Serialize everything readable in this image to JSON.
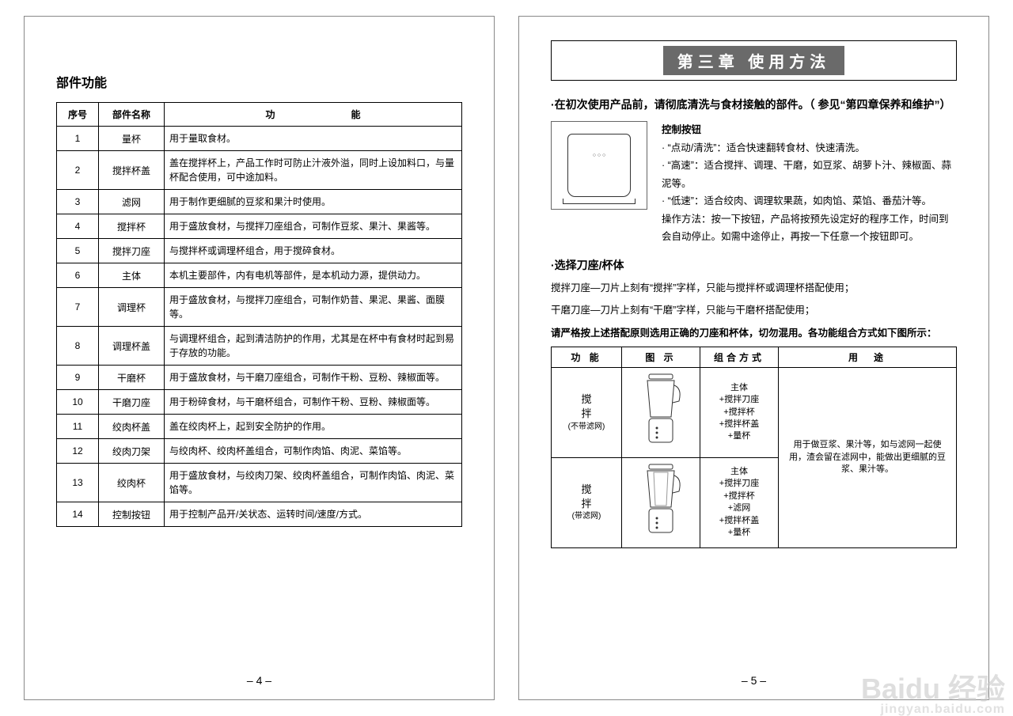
{
  "left": {
    "heading": "部件功能",
    "table": {
      "headers": {
        "num": "序号",
        "name": "部件名称",
        "func": "功　　能"
      },
      "rows": [
        {
          "num": "1",
          "name": "量杯",
          "func": "用于量取食材。"
        },
        {
          "num": "2",
          "name": "搅拌杯盖",
          "func": "盖在搅拌杯上，产品工作时可防止汁液外溢，同时上设加料口，与量杯配合使用，可中途加料。"
        },
        {
          "num": "3",
          "name": "滤网",
          "func": "用于制作更细腻的豆浆和果汁时使用。"
        },
        {
          "num": "4",
          "name": "搅拌杯",
          "func": "用于盛放食材，与搅拌刀座组合，可制作豆浆、果汁、果酱等。"
        },
        {
          "num": "5",
          "name": "搅拌刀座",
          "func": "与搅拌杯或调理杯组合，用于搅碎食材。"
        },
        {
          "num": "6",
          "name": "主体",
          "func": "本机主要部件，内有电机等部件，是本机动力源，提供动力。"
        },
        {
          "num": "7",
          "name": "调理杯",
          "func": "用于盛放食材，与搅拌刀座组合，可制作奶昔、果泥、果酱、面膜等。"
        },
        {
          "num": "8",
          "name": "调理杯盖",
          "func": "与调理杯组合，起到清洁防护的作用，尤其是在杯中有食材时起到易于存放的功能。"
        },
        {
          "num": "9",
          "name": "干磨杯",
          "func": "用于盛放食材，与干磨刀座组合，可制作干粉、豆粉、辣椒面等。"
        },
        {
          "num": "10",
          "name": "干磨刀座",
          "func": "用于粉碎食材，与干磨杯组合，可制作干粉、豆粉、辣椒面等。"
        },
        {
          "num": "11",
          "name": "绞肉杯盖",
          "func": "盖在绞肉杯上，起到安全防护的作用。"
        },
        {
          "num": "12",
          "name": "绞肉刀架",
          "func": "与绞肉杯、绞肉杯盖组合，可制作肉馅、肉泥、菜馅等。"
        },
        {
          "num": "13",
          "name": "绞肉杯",
          "func": "用于盛放食材，与绞肉刀架、绞肉杯盖组合，可制作肉馅、肉泥、菜馅等。"
        },
        {
          "num": "14",
          "name": "控制按钮",
          "func": "用于控制产品开/关状态、运转时间/速度/方式。"
        }
      ]
    },
    "page_num": "– 4 –"
  },
  "right": {
    "chapter_title": "第三章 使用方法",
    "intro": "·在初次使用产品前，请彻底清洗与食材接触的部件。（ 参见“第四章保养和维护”）",
    "control": {
      "heading": "控制按钮",
      "lines": [
        "· “点动/清洗”：适合快速翻转食材、快速清洗。",
        "· “高速”：适合搅拌、调理、干磨，如豆浆、胡萝卜汁、辣椒面、蒜泥等。",
        "· “低速”：适合绞肉、调理软果蔬，如肉馅、菜馅、番茄汁等。",
        "操作方法：按一下按钮，产品将按预先设定好的程序工作，时间到会自动停止。如需中途停止，再按一下任意一个按钮即可。"
      ],
      "device_btns": "○\n○\n○"
    },
    "select": {
      "heading": "·选择刀座/杯体",
      "para1": "搅拌刀座—刀片上刻有“搅拌”字样，只能与搅拌杯或调理杯搭配使用；",
      "para2": "干磨刀座—刀片上刻有“干磨”字样，只能与干磨杯搭配使用；",
      "para3": "请严格按上述搭配原则选用正确的刀座和杯体，切勿混用。各功能组合方式如下图所示："
    },
    "combo_table": {
      "headers": {
        "func": "功 能",
        "illus": "图 示",
        "combo": "组合方式",
        "use": "用　途"
      },
      "rows": [
        {
          "func": "搅\n拌",
          "func_note": "(不带滤网)",
          "combo": "主体\n+搅拌刀座\n+搅拌杯\n+搅拌杯盖\n+量杯",
          "use_rowspan": true
        },
        {
          "func": "搅\n拌",
          "func_note": "(带滤网)",
          "combo": "主体\n+搅拌刀座\n+搅拌杯\n+滤网\n+搅拌杯盖\n+量杯"
        }
      ],
      "use": "用于做豆浆、果汁等，如与滤网一起使用，渣会留在滤网中，能做出更细腻的豆浆、果汁等。"
    },
    "page_num": "– 5 –"
  },
  "watermark": {
    "main": "Baidu 经验",
    "sub": "jingyan.baidu.com"
  },
  "colors": {
    "page_border": "#888888",
    "table_border": "#000000",
    "chapter_bg": "#6a6a6a",
    "chapter_fg": "#ffffff",
    "watermark": "rgba(200,200,200,0.6)"
  }
}
